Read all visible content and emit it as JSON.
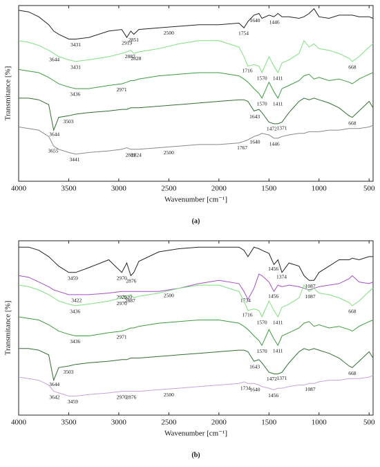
{
  "chart_data": [
    {
      "type": "line",
      "caption": "(a)",
      "x_label": "Wavenumber [cm⁻¹]",
      "y_label": "Transmitance [%]",
      "xlim": [
        4000,
        460
      ],
      "ylim": [
        -10,
        100
      ],
      "xticks": [
        4000,
        3500,
        3000,
        2500,
        2000,
        1500,
        1000,
        500
      ],
      "x": [
        4000,
        3900,
        3800,
        3700,
        3650,
        3600,
        3500,
        3431,
        3300,
        3100,
        2970,
        2920,
        2880,
        2850,
        2800,
        2600,
        2400,
        2200,
        2000,
        1800,
        1750,
        1710,
        1650,
        1600,
        1570,
        1500,
        1450,
        1410,
        1370,
        1300,
        1200,
        1150,
        1100,
        1050,
        1000,
        900,
        800,
        700,
        668,
        600,
        500,
        460
      ],
      "series": [
        {
          "color": "#222222",
          "values": [
            97,
            96,
            93,
            88,
            84,
            82,
            79,
            79,
            80,
            84,
            85,
            80,
            84,
            82,
            85,
            86,
            87,
            88,
            88,
            89,
            86,
            90,
            94,
            95,
            92,
            94,
            93,
            95,
            93,
            93,
            92,
            93,
            95,
            98,
            93,
            92,
            94,
            94,
            94,
            93,
            93,
            92
          ],
          "peaks": [
            "3431",
            "2919",
            "2851",
            "2500",
            "1754",
            "1640",
            "1446"
          ]
        },
        {
          "color": "#7ee07e",
          "values": [
            78,
            77,
            75,
            72,
            70,
            68,
            66,
            65,
            66,
            68,
            70,
            71,
            72,
            70,
            71,
            73,
            76,
            78,
            78,
            74,
            68,
            62,
            63,
            62,
            58,
            68,
            62,
            58,
            64,
            66,
            70,
            78,
            74,
            76,
            73,
            72,
            70,
            67,
            65,
            68,
            74,
            76
          ],
          "peaks": [
            "3644",
            "3431",
            "2887",
            "2828",
            "1716",
            "1570",
            "1411",
            "668"
          ]
        },
        {
          "color": "#3d9b3d",
          "values": [
            60,
            59,
            58,
            55,
            53,
            51,
            49,
            48,
            48,
            50,
            51,
            52,
            53,
            53,
            54,
            56,
            57,
            58,
            58,
            56,
            54,
            52,
            48,
            45,
            42,
            52,
            46,
            42,
            48,
            50,
            53,
            56,
            57,
            54,
            55,
            53,
            54,
            52,
            51,
            54,
            57,
            58
          ],
          "peaks": [
            "3436",
            "2971",
            "1570",
            "1411"
          ]
        },
        {
          "color": "#2f6f2f",
          "values": [
            42,
            42,
            41,
            38,
            22,
            30,
            31,
            32,
            33,
            34,
            35,
            35,
            36,
            36,
            36,
            37,
            38,
            39,
            40,
            41,
            41,
            40,
            34,
            35,
            33,
            27,
            26,
            26,
            27,
            33,
            40,
            42,
            41,
            42,
            41,
            39,
            36,
            31,
            30,
            34,
            40,
            36
          ],
          "peaks": [
            "3644",
            "3503",
            "1643",
            "1472",
            "1371",
            "668"
          ]
        },
        {
          "color": "#888888",
          "values": [
            24,
            23,
            22,
            18,
            12,
            10,
            8,
            7,
            8,
            9,
            10,
            11,
            10,
            10,
            10,
            11,
            12,
            13,
            13,
            14,
            15,
            16,
            18,
            19,
            20,
            19,
            17,
            17,
            18,
            19,
            20,
            20,
            21,
            21,
            21,
            22,
            22,
            23,
            23,
            23,
            24,
            25
          ],
          "peaks": [
            "3655",
            "3441",
            "2881",
            "2824",
            "2500",
            "1767",
            "1640",
            "1446"
          ]
        }
      ]
    },
    {
      "type": "line",
      "caption": "(b)",
      "x_label": "Wavenumber [cm⁻¹]",
      "y_label": "Transmitance [%]",
      "xlim": [
        4000,
        460
      ],
      "ylim": [
        -10,
        100
      ],
      "xticks": [
        4000,
        3500,
        3000,
        2500,
        2000,
        1500,
        1000,
        500
      ],
      "x": [
        4000,
        3900,
        3800,
        3700,
        3650,
        3600,
        3500,
        3431,
        3300,
        3100,
        2970,
        2920,
        2880,
        2850,
        2800,
        2600,
        2400,
        2200,
        2000,
        1800,
        1750,
        1710,
        1650,
        1600,
        1570,
        1500,
        1450,
        1410,
        1370,
        1300,
        1200,
        1150,
        1100,
        1050,
        1000,
        900,
        800,
        700,
        668,
        600,
        500,
        460
      ],
      "series": [
        {
          "color": "#222222",
          "values": [
            96,
            96,
            94,
            90,
            87,
            84,
            80,
            80,
            83,
            88,
            80,
            86,
            78,
            80,
            87,
            93,
            95,
            96,
            96,
            96,
            94,
            90,
            96,
            95,
            94,
            92,
            85,
            88,
            80,
            86,
            84,
            78,
            75,
            75,
            80,
            84,
            88,
            88,
            89,
            88,
            90,
            90
          ],
          "peaks": [
            "3459",
            "2970",
            "2876",
            "1456",
            "1374",
            "1087"
          ]
        },
        {
          "color": "#a64dc8",
          "values": [
            78,
            77,
            74,
            71,
            69,
            68,
            66,
            66,
            66,
            67,
            68,
            68,
            68,
            68,
            68,
            68,
            70,
            73,
            75,
            73,
            68,
            63,
            70,
            79,
            78,
            74,
            68,
            72,
            71,
            72,
            71,
            70,
            69,
            70,
            71,
            72,
            73,
            76,
            78,
            74,
            73,
            74
          ],
          "peaks": [
            "3422",
            "2970",
            "2920",
            "2500",
            "1734",
            "1456"
          ]
        },
        {
          "color": "#7ee07e",
          "values": [
            72,
            71,
            69,
            66,
            64,
            62,
            60,
            59,
            60,
            62,
            64,
            65,
            66,
            64,
            65,
            67,
            70,
            72,
            72,
            68,
            62,
            56,
            57,
            56,
            52,
            62,
            56,
            52,
            58,
            60,
            64,
            72,
            68,
            70,
            67,
            66,
            64,
            61,
            59,
            62,
            68,
            70
          ],
          "peaks": [
            "3436",
            "2970",
            "2887",
            "1716",
            "1570",
            "1411",
            "1087",
            "668"
          ]
        },
        {
          "color": "#3d9b3d",
          "values": [
            52,
            51,
            50,
            47,
            45,
            43,
            41,
            40,
            40,
            42,
            43,
            44,
            45,
            45,
            46,
            48,
            49,
            50,
            50,
            48,
            46,
            44,
            40,
            37,
            34,
            44,
            38,
            34,
            40,
            42,
            45,
            48,
            49,
            46,
            47,
            45,
            46,
            44,
            43,
            46,
            49,
            50
          ],
          "peaks": [
            "3436",
            "2971",
            "1570",
            "1411"
          ]
        },
        {
          "color": "#2f6f2f",
          "values": [
            32,
            32,
            31,
            28,
            12,
            20,
            21,
            22,
            23,
            24,
            25,
            25,
            26,
            26,
            26,
            27,
            28,
            29,
            30,
            31,
            31,
            30,
            24,
            25,
            23,
            17,
            16,
            16,
            17,
            23,
            30,
            32,
            31,
            32,
            31,
            29,
            26,
            21,
            20,
            24,
            30,
            26
          ],
          "peaks": [
            "3644",
            "3503",
            "1643",
            "1472",
            "1371",
            "668"
          ]
        },
        {
          "color": "#c8a0dc",
          "values": [
            14,
            13,
            12,
            9,
            5,
            4,
            2,
            2,
            3,
            4,
            5,
            5,
            5,
            5,
            5,
            6,
            7,
            8,
            9,
            10,
            11,
            10,
            10,
            9,
            8,
            7,
            6,
            7,
            7,
            8,
            9,
            9,
            10,
            10,
            11,
            12,
            12,
            13,
            13,
            13,
            14,
            15
          ],
          "peaks": [
            "3642",
            "3459",
            "2970",
            "2876",
            "2500",
            "1734",
            "1640",
            "1456",
            "1087"
          ]
        }
      ]
    }
  ]
}
